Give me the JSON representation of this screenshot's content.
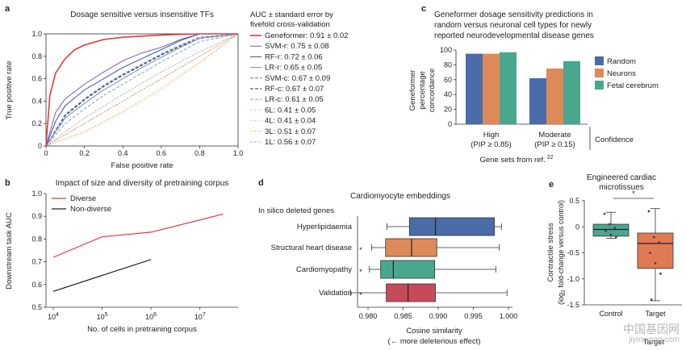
{
  "colors": {
    "geneformer": "#e8383b",
    "random": "#4a6ca8",
    "neurons": "#de8a58",
    "fetal": "#4aa78f",
    "diverse": "#e8383b",
    "nondiverse": "#222222",
    "control_box": "#4aa78f",
    "target_box": "#e07a55"
  },
  "watermark": {
    "cn": "中国基因网",
    "en": "jiyinwang.com"
  },
  "panel_a": {
    "letter": "a",
    "chart_data": {
      "type": "line",
      "title": "Dosage sensitive versus insensitive TFs",
      "xlabel": "False positive rate",
      "ylabel": "True positive rate",
      "xlim": [
        0,
        1
      ],
      "ylim": [
        0,
        1
      ],
      "xticks": [
        "0",
        "0.2",
        "0.4",
        "0.6",
        "0.8",
        "1.0"
      ],
      "yticks": [
        "0",
        "0.2",
        "0.4",
        "0.6",
        "0.8",
        "1.0"
      ],
      "legend_title": "AUC ± standard error by fivefold cross-validation",
      "legend_placement": "right",
      "series": [
        {
          "name": "Geneformer: 0.91 ± 0.02",
          "color": "#e8383b",
          "dash": "",
          "bold": true,
          "x": [
            0,
            0.02,
            0.05,
            0.1,
            0.15,
            0.2,
            0.3,
            0.4,
            0.6,
            0.8,
            1.0
          ],
          "y": [
            0,
            0.45,
            0.65,
            0.78,
            0.86,
            0.9,
            0.95,
            0.97,
            0.99,
            1.0,
            1.0
          ]
        },
        {
          "name": "SVM-r: 0.75 ± 0.08",
          "color": "#7b55b8",
          "dash": "",
          "x": [
            0,
            0.05,
            0.1,
            0.2,
            0.3,
            0.4,
            0.5,
            0.6,
            0.7,
            0.8,
            1.0
          ],
          "y": [
            0,
            0.3,
            0.42,
            0.55,
            0.66,
            0.76,
            0.83,
            0.88,
            0.95,
            1.0,
            1.0
          ]
        },
        {
          "name": "RF-r: 0.72 ± 0.06",
          "color": "#3a4fb5",
          "dash": "",
          "x": [
            0,
            0.05,
            0.1,
            0.2,
            0.3,
            0.4,
            0.5,
            0.6,
            0.7,
            0.8,
            1.0
          ],
          "y": [
            0,
            0.22,
            0.36,
            0.5,
            0.6,
            0.7,
            0.78,
            0.86,
            0.94,
            1.0,
            1.0
          ]
        },
        {
          "name": "LR-r: 0.65 ± 0.05",
          "color": "#6f8fc8",
          "dash": "",
          "x": [
            0,
            0.1,
            0.2,
            0.3,
            0.4,
            0.5,
            0.6,
            0.7,
            0.8,
            1.0
          ],
          "y": [
            0,
            0.25,
            0.38,
            0.5,
            0.6,
            0.7,
            0.79,
            0.88,
            0.96,
            1.0
          ]
        },
        {
          "name": "SVM-c: 0.67 ± 0.09",
          "color": "#5a6fa3",
          "dash": "4,2",
          "x": [
            0,
            0.1,
            0.2,
            0.3,
            0.4,
            0.5,
            0.6,
            0.7,
            0.8,
            1.0
          ],
          "y": [
            0,
            0.28,
            0.42,
            0.54,
            0.64,
            0.73,
            0.82,
            0.9,
            0.97,
            1.0
          ]
        },
        {
          "name": "RF-c: 0.67 ± 0.07",
          "color": "#1c2f66",
          "dash": "4,2",
          "x": [
            0,
            0.1,
            0.2,
            0.3,
            0.4,
            0.5,
            0.6,
            0.7,
            0.8,
            1.0
          ],
          "y": [
            0,
            0.27,
            0.41,
            0.53,
            0.63,
            0.72,
            0.81,
            0.89,
            0.96,
            1.0
          ]
        },
        {
          "name": "LR-c: 0.61 ± 0.05",
          "color": "#7ca8c8",
          "dash": "4,2",
          "x": [
            0,
            0.1,
            0.2,
            0.3,
            0.4,
            0.5,
            0.6,
            0.7,
            0.8,
            1.0
          ],
          "y": [
            0,
            0.2,
            0.33,
            0.45,
            0.55,
            0.65,
            0.75,
            0.84,
            0.93,
            1.0
          ]
        },
        {
          "name": "6L: 0.41 ± 0.05",
          "color": "#d9a0a0",
          "dash": "1,2",
          "x": [
            0,
            0.2,
            0.4,
            0.6,
            0.8,
            1.0
          ],
          "y": [
            0,
            0.12,
            0.3,
            0.5,
            0.74,
            1.0
          ]
        },
        {
          "name": "4L: 0.41 ± 0.04",
          "color": "#e0b84a",
          "dash": "1,2",
          "x": [
            0,
            0.2,
            0.4,
            0.6,
            0.8,
            1.0
          ],
          "y": [
            0,
            0.13,
            0.31,
            0.52,
            0.75,
            1.0
          ]
        },
        {
          "name": "3L: 0.51 ± 0.07",
          "color": "#d88a30",
          "dash": "1,2",
          "x": [
            0,
            0.2,
            0.4,
            0.6,
            0.8,
            1.0
          ],
          "y": [
            0,
            0.2,
            0.4,
            0.6,
            0.8,
            1.0
          ]
        },
        {
          "name": "1L: 0.56 ± 0.07",
          "color": "#6c7e8c",
          "dash": "1,2",
          "x": [
            0,
            0.2,
            0.4,
            0.6,
            0.8,
            1.0
          ],
          "y": [
            0,
            0.25,
            0.46,
            0.66,
            0.84,
            1.0
          ]
        }
      ]
    }
  },
  "panel_b": {
    "letter": "b",
    "chart_data": {
      "type": "line",
      "title": "Impact of size and diversity of pretraining corpus",
      "xlabel": "No. of cells in pretraining corpus",
      "ylabel": "Downstream task AUC",
      "xscale": "log",
      "xlim": [
        10000,
        50000000
      ],
      "ylim": [
        0.5,
        1.0
      ],
      "xticks": [
        {
          "v": 10000,
          "base": "10",
          "exp": "4"
        },
        {
          "v": 100000,
          "base": "10",
          "exp": "5"
        },
        {
          "v": 1000000,
          "base": "10",
          "exp": "6"
        },
        {
          "v": 10000000,
          "base": "10",
          "exp": "7"
        }
      ],
      "yticks": [
        "0.5",
        "0.6",
        "0.7",
        "0.8",
        "0.9",
        "1.0"
      ],
      "legend_placement": "top-left",
      "series": [
        {
          "name": "Diverse",
          "color": "#e8383b",
          "x": [
            10000,
            100000,
            1000000,
            30000000
          ],
          "y": [
            0.72,
            0.81,
            0.83,
            0.91
          ]
        },
        {
          "name": "Non-diverse",
          "color": "#222222",
          "x": [
            10000,
            100000,
            1000000
          ],
          "y": [
            0.57,
            0.64,
            0.71
          ]
        }
      ]
    }
  },
  "panel_c": {
    "letter": "c",
    "chart_data": {
      "type": "bar",
      "title": "Geneformer dosage sensitivity predictions in random versus neuronal cell types for newly reported neurodevelopmental disease genes",
      "title_lines": [
        "Geneformer dosage sensitivity predictions in",
        "random versus neuronal cell types for newly",
        "reported neurodevelopmental disease genes"
      ],
      "ylabel_lines": [
        "Geneformer",
        "percentage",
        "concordance"
      ],
      "xlabel": "Gene sets from ref.",
      "xlabel_ref": "22",
      "ylim": [
        0,
        100
      ],
      "yticks": [
        "0",
        "20",
        "40",
        "60",
        "80",
        "100"
      ],
      "categories": [
        {
          "line1": "High",
          "line2": "(PIP ≥ 0.85)"
        },
        {
          "line1": "Moderate",
          "line2": "(PIP ≥ 0.15)"
        }
      ],
      "category_group_label": "Confidence",
      "legend_placement": "right",
      "series": [
        {
          "name": "Random",
          "color": "#4a6ca8",
          "values": [
            95,
            62
          ]
        },
        {
          "name": "Neurons",
          "color": "#de8a58",
          "values": [
            95,
            75
          ]
        },
        {
          "name": "Fetal cerebrum",
          "color": "#4aa78f",
          "values": [
            97,
            85
          ]
        }
      ]
    }
  },
  "panel_d": {
    "letter": "d",
    "chart_data": {
      "type": "box",
      "title": "Cardiomyocyte embeddings",
      "group_label": "In silico deleted genes",
      "xlabel": "Cosine similarity",
      "xlabel2": "(← more deleterious effect)",
      "xlim": [
        0.978,
        1.0
      ],
      "xticks": [
        "0.980",
        "0.985",
        "0.990",
        "0.995",
        "1.000"
      ],
      "categories": [
        "Hyperlipidaemia",
        "Structural heart disease",
        "Cardiomyopathy",
        "Validation"
      ],
      "significance": [
        "",
        "*",
        "*",
        "*"
      ],
      "boxes": [
        {
          "name": "Hyperlipidaemia",
          "color": "#4a6ca8",
          "whisker_low": 0.9827,
          "q1": 0.9859,
          "median": 0.9896,
          "q3": 0.998,
          "whisker_high": 0.999
        },
        {
          "name": "Structural heart disease",
          "color": "#de8a58",
          "whisker_low": 0.9805,
          "q1": 0.9825,
          "median": 0.9862,
          "q3": 0.9898,
          "whisker_high": 0.9987
        },
        {
          "name": "Cardiomyopathy",
          "color": "#4aa78f",
          "whisker_low": 0.9802,
          "q1": 0.9818,
          "median": 0.9836,
          "q3": 0.9895,
          "whisker_high": 0.9982
        },
        {
          "name": "Validation",
          "color": "#c74a5a",
          "whisker_low": 0.9775,
          "q1": 0.9826,
          "median": 0.9857,
          "q3": 0.9896,
          "whisker_high": 0.9998
        }
      ]
    }
  },
  "panel_e": {
    "letter": "e",
    "chart_data": {
      "type": "box",
      "title_lines": [
        "Engineered cardiac",
        "microtissues"
      ],
      "ylabel": "Contractile stress",
      "ylabel2_pre": "(log",
      "ylabel2_sub": "2",
      "ylabel2_post": " fold-change versus control)",
      "xlabel": "Target",
      "ylim": [
        -1.5,
        0.5
      ],
      "yticks": [
        "0.5",
        "0",
        "-0.5",
        "-1.0",
        "-1.5"
      ],
      "categories": [
        "Control",
        "Target"
      ],
      "significance": "*",
      "boxes": [
        {
          "name": "Control",
          "color": "#4aa78f",
          "whisker_low": -0.22,
          "q1": -0.18,
          "median": -0.05,
          "q3": 0.05,
          "whisker_high": 0.28,
          "points": [
            0.25,
            0.05,
            -0.02,
            -0.08,
            -0.15,
            -0.2
          ]
        },
        {
          "name": "Target",
          "color": "#e07a55",
          "whisker_low": -1.42,
          "q1": -0.8,
          "median": -0.32,
          "q3": -0.12,
          "whisker_high": 0.35,
          "points": [
            0.3,
            -0.2,
            -0.3,
            -0.5,
            -0.7,
            -0.9,
            -1.4
          ]
        }
      ]
    }
  }
}
